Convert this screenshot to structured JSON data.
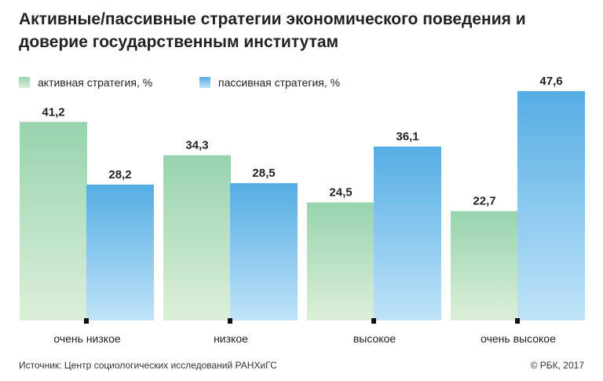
{
  "title": "Активные/пассивные стратегии экономического поведения и доверие государственным институтам",
  "source": "Источник:  Центр социологических исследований РАНХиГС",
  "copyright": "© РБК, 2017",
  "colors": {
    "active_top": "#97d3ae",
    "active_bottom": "#dcefd8",
    "passive_top": "#55ade4",
    "passive_bottom": "#bfe3f8",
    "tick": "#111111"
  },
  "chart_data": {
    "type": "bar",
    "categories": [
      "очень низкое",
      "низкое",
      "высокое",
      "очень высокое"
    ],
    "series": [
      {
        "name": "активная стратегия, %",
        "values": [
          41.2,
          34.3,
          24.5,
          22.7
        ],
        "labels": [
          "41,2",
          "34,3",
          "24,5",
          "22,7"
        ]
      },
      {
        "name": "пассивная стратегия, %",
        "values": [
          28.2,
          28.5,
          36.1,
          47.6
        ],
        "labels": [
          "28,2",
          "28,5",
          "36,1",
          "47,6"
        ]
      }
    ],
    "ylim": [
      0,
      47.6
    ],
    "grid": false,
    "legend_position": "top-left"
  }
}
